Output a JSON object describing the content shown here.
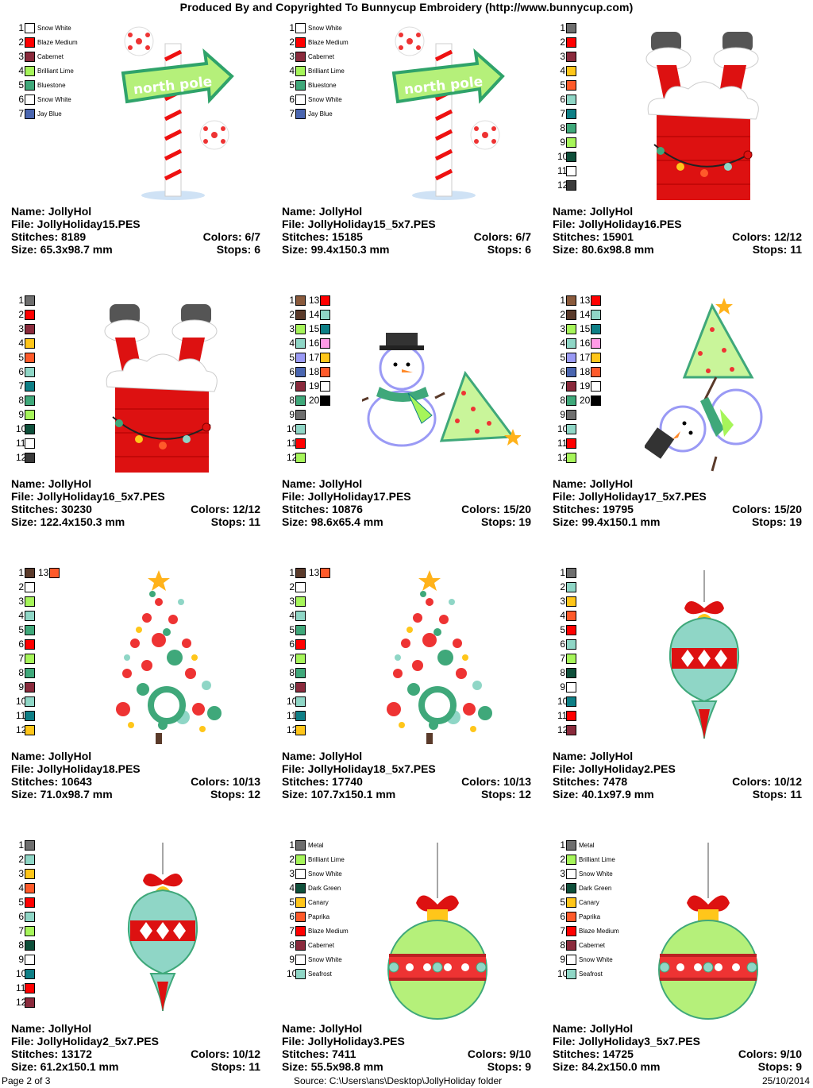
{
  "header": "Produced By and Copyrighted To Bunnycup Embroidery (http://www.bunnycup.com)",
  "footer": {
    "page": "Page 2 of 3",
    "source": "Source: C:\\Users\\ans\\Desktop\\JollyHoliday folder",
    "date": "25/10/2014"
  },
  "labels": {
    "name": "Name:",
    "file": "File:",
    "stitches": "Stitches:",
    "size": "Size:",
    "colors": "Colors:",
    "stops": "Stops:"
  },
  "designs": [
    {
      "name": "JollyHol",
      "file": "JollyHoliday15.PES",
      "stitches": "8189",
      "size": "65.3x98.7 mm",
      "colors": "6/7",
      "stops": "6",
      "art": "northpole",
      "swatches": [
        {
          "n": "1",
          "c": "#ffffff",
          "l": "Snow White"
        },
        {
          "n": "2",
          "c": "#ff0000",
          "l": "Blaze Medium"
        },
        {
          "n": "3",
          "c": "#8a2a3c",
          "l": "Cabernet"
        },
        {
          "n": "4",
          "c": "#a6f55a",
          "l": "Brilliant Lime"
        },
        {
          "n": "5",
          "c": "#3fa87a",
          "l": "Bluestone"
        },
        {
          "n": "6",
          "c": "#ffffff",
          "l": "Snow White"
        },
        {
          "n": "7",
          "c": "#4a66b0",
          "l": "Jay Blue"
        }
      ]
    },
    {
      "name": "JollyHol",
      "file": "JollyHoliday15_5x7.PES",
      "stitches": "15185",
      "size": "99.4x150.3 mm",
      "colors": "6/7",
      "stops": "6",
      "art": "northpole",
      "swatches": [
        {
          "n": "1",
          "c": "#ffffff",
          "l": "Snow White"
        },
        {
          "n": "2",
          "c": "#ff0000",
          "l": "Blaze Medium"
        },
        {
          "n": "3",
          "c": "#8a2a3c",
          "l": "Cabernet"
        },
        {
          "n": "4",
          "c": "#a6f55a",
          "l": "Brilliant Lime"
        },
        {
          "n": "5",
          "c": "#3fa87a",
          "l": "Bluestone"
        },
        {
          "n": "6",
          "c": "#ffffff",
          "l": "Snow White"
        },
        {
          "n": "7",
          "c": "#4a66b0",
          "l": "Jay Blue"
        }
      ]
    },
    {
      "name": "JollyHol",
      "file": "JollyHoliday16.PES",
      "stitches": "15901",
      "size": "80.6x98.8 mm",
      "colors": "12/12",
      "stops": "11",
      "art": "chimney",
      "swatches": [
        {
          "n": "1",
          "c": "#6e6e6e"
        },
        {
          "n": "2",
          "c": "#ff0000"
        },
        {
          "n": "3",
          "c": "#8a2a3c"
        },
        {
          "n": "4",
          "c": "#ffc61a"
        },
        {
          "n": "5",
          "c": "#ff5a2a"
        },
        {
          "n": "6",
          "c": "#8fd6c6"
        },
        {
          "n": "7",
          "c": "#0e7f86"
        },
        {
          "n": "8",
          "c": "#3fa87a"
        },
        {
          "n": "9",
          "c": "#a6f55a"
        },
        {
          "n": "10",
          "c": "#0e4f3a"
        },
        {
          "n": "11",
          "c": "#ffffff"
        },
        {
          "n": "12",
          "c": "#3a3a3a"
        }
      ]
    },
    {
      "name": "JollyHol",
      "file": "JollyHoliday16_5x7.PES",
      "stitches": "30230",
      "size": "122.4x150.3 mm",
      "colors": "12/12",
      "stops": "11",
      "art": "chimney",
      "swatches": [
        {
          "n": "1",
          "c": "#6e6e6e"
        },
        {
          "n": "2",
          "c": "#ff0000"
        },
        {
          "n": "3",
          "c": "#8a2a3c"
        },
        {
          "n": "4",
          "c": "#ffc61a"
        },
        {
          "n": "5",
          "c": "#ff5a2a"
        },
        {
          "n": "6",
          "c": "#8fd6c6"
        },
        {
          "n": "7",
          "c": "#0e7f86"
        },
        {
          "n": "8",
          "c": "#3fa87a"
        },
        {
          "n": "9",
          "c": "#a6f55a"
        },
        {
          "n": "10",
          "c": "#0e4f3a"
        },
        {
          "n": "11",
          "c": "#ffffff"
        },
        {
          "n": "12",
          "c": "#3a3a3a"
        }
      ]
    },
    {
      "name": "JollyHol",
      "file": "JollyHoliday17.PES",
      "stitches": "10876",
      "size": "98.6x65.4 mm",
      "colors": "15/20",
      "stops": "19",
      "art": "snowman-lying",
      "swatches": [
        {
          "n": "1",
          "c": "#8a5a3c",
          "n2": "13",
          "c2": "#ff0000"
        },
        {
          "n": "2",
          "c": "#5a3a2a",
          "n2": "14",
          "c2": "#8fd6c6"
        },
        {
          "n": "3",
          "c": "#a6f55a",
          "n2": "15",
          "c2": "#0e7f86"
        },
        {
          "n": "4",
          "c": "#8fd6c6",
          "n2": "16",
          "c2": "#ff9ae6"
        },
        {
          "n": "5",
          "c": "#9a9af5",
          "n2": "17",
          "c2": "#ffc61a"
        },
        {
          "n": "6",
          "c": "#4a66b0",
          "n2": "18",
          "c2": "#ff5a2a"
        },
        {
          "n": "7",
          "c": "#8a2a3c",
          "n2": "19",
          "c2": "#ffffff"
        },
        {
          "n": "8",
          "c": "#3fa87a",
          "n2": "20",
          "c2": "#000000"
        },
        {
          "n": "9",
          "c": "#6e6e6e"
        },
        {
          "n": "10",
          "c": "#8fd6c6"
        },
        {
          "n": "11",
          "c": "#ff0000"
        },
        {
          "n": "12",
          "c": "#a6f55a"
        }
      ]
    },
    {
      "name": "JollyHol",
      "file": "JollyHoliday17_5x7.PES",
      "stitches": "19795",
      "size": "99.4x150.1 mm",
      "colors": "15/20",
      "stops": "19",
      "art": "snowman-tree",
      "swatches": [
        {
          "n": "1",
          "c": "#8a5a3c",
          "n2": "13",
          "c2": "#ff0000"
        },
        {
          "n": "2",
          "c": "#5a3a2a",
          "n2": "14",
          "c2": "#8fd6c6"
        },
        {
          "n": "3",
          "c": "#a6f55a",
          "n2": "15",
          "c2": "#0e7f86"
        },
        {
          "n": "4",
          "c": "#8fd6c6",
          "n2": "16",
          "c2": "#ff9ae6"
        },
        {
          "n": "5",
          "c": "#9a9af5",
          "n2": "17",
          "c2": "#ffc61a"
        },
        {
          "n": "6",
          "c": "#4a66b0",
          "n2": "18",
          "c2": "#ff5a2a"
        },
        {
          "n": "7",
          "c": "#8a2a3c",
          "n2": "19",
          "c2": "#ffffff"
        },
        {
          "n": "8",
          "c": "#3fa87a",
          "n2": "20",
          "c2": "#000000"
        },
        {
          "n": "9",
          "c": "#6e6e6e"
        },
        {
          "n": "10",
          "c": "#8fd6c6"
        },
        {
          "n": "11",
          "c": "#ff0000"
        },
        {
          "n": "12",
          "c": "#a6f55a"
        }
      ]
    },
    {
      "name": "JollyHol",
      "file": "JollyHoliday18.PES",
      "stitches": "10643",
      "size": "71.0x98.7 mm",
      "colors": "10/13",
      "stops": "12",
      "art": "tree",
      "swatches": [
        {
          "n": "1",
          "c": "#5a3a2a",
          "n2": "13",
          "c2": "#ff5a2a"
        },
        {
          "n": "2",
          "c": "#ffffff"
        },
        {
          "n": "3",
          "c": "#a6f55a"
        },
        {
          "n": "4",
          "c": "#8fd6c6"
        },
        {
          "n": "5",
          "c": "#3fa87a"
        },
        {
          "n": "6",
          "c": "#ff0000"
        },
        {
          "n": "7",
          "c": "#a6f55a"
        },
        {
          "n": "8",
          "c": "#3fa87a"
        },
        {
          "n": "9",
          "c": "#8a2a3c"
        },
        {
          "n": "10",
          "c": "#8fd6c6"
        },
        {
          "n": "11",
          "c": "#0e7f86"
        },
        {
          "n": "12",
          "c": "#ffc61a"
        }
      ]
    },
    {
      "name": "JollyHol",
      "file": "JollyHoliday18_5x7.PES",
      "stitches": "17740",
      "size": "107.7x150.1 mm",
      "colors": "10/13",
      "stops": "12",
      "art": "tree",
      "swatches": [
        {
          "n": "1",
          "c": "#5a3a2a",
          "n2": "13",
          "c2": "#ff5a2a"
        },
        {
          "n": "2",
          "c": "#ffffff"
        },
        {
          "n": "3",
          "c": "#a6f55a"
        },
        {
          "n": "4",
          "c": "#8fd6c6"
        },
        {
          "n": "5",
          "c": "#3fa87a"
        },
        {
          "n": "6",
          "c": "#ff0000"
        },
        {
          "n": "7",
          "c": "#a6f55a"
        },
        {
          "n": "8",
          "c": "#3fa87a"
        },
        {
          "n": "9",
          "c": "#8a2a3c"
        },
        {
          "n": "10",
          "c": "#8fd6c6"
        },
        {
          "n": "11",
          "c": "#0e7f86"
        },
        {
          "n": "12",
          "c": "#ffc61a"
        }
      ]
    },
    {
      "name": "JollyHol",
      "file": "JollyHoliday2.PES",
      "stitches": "7478",
      "size": "40.1x97.9 mm",
      "colors": "10/12",
      "stops": "11",
      "art": "ornament-drop",
      "swatches": [
        {
          "n": "1",
          "c": "#6e6e6e"
        },
        {
          "n": "2",
          "c": "#8fd6c6"
        },
        {
          "n": "3",
          "c": "#ffc61a"
        },
        {
          "n": "4",
          "c": "#ff5a2a"
        },
        {
          "n": "5",
          "c": "#ff0000"
        },
        {
          "n": "6",
          "c": "#8fd6c6"
        },
        {
          "n": "7",
          "c": "#a6f55a"
        },
        {
          "n": "8",
          "c": "#0e4f3a"
        },
        {
          "n": "9",
          "c": "#ffffff"
        },
        {
          "n": "10",
          "c": "#0e7f86"
        },
        {
          "n": "11",
          "c": "#ff0000"
        },
        {
          "n": "12",
          "c": "#8a2a3c"
        }
      ]
    },
    {
      "name": "JollyHol",
      "file": "JollyHoliday2_5x7.PES",
      "stitches": "13172",
      "size": "61.2x150.1 mm",
      "colors": "10/12",
      "stops": "11",
      "art": "ornament-drop",
      "swatches": [
        {
          "n": "1",
          "c": "#6e6e6e"
        },
        {
          "n": "2",
          "c": "#8fd6c6"
        },
        {
          "n": "3",
          "c": "#ffc61a"
        },
        {
          "n": "4",
          "c": "#ff5a2a"
        },
        {
          "n": "5",
          "c": "#ff0000"
        },
        {
          "n": "6",
          "c": "#8fd6c6"
        },
        {
          "n": "7",
          "c": "#a6f55a"
        },
        {
          "n": "8",
          "c": "#0e4f3a"
        },
        {
          "n": "9",
          "c": "#ffffff"
        },
        {
          "n": "10",
          "c": "#0e7f86"
        },
        {
          "n": "11",
          "c": "#ff0000"
        },
        {
          "n": "12",
          "c": "#8a2a3c"
        }
      ]
    },
    {
      "name": "JollyHol",
      "file": "JollyHoliday3.PES",
      "stitches": "7411",
      "size": "55.5x98.8 mm",
      "colors": "9/10",
      "stops": "9",
      "art": "ornament-ball",
      "swatches": [
        {
          "n": "1",
          "c": "#6e6e6e",
          "l": "Metal"
        },
        {
          "n": "2",
          "c": "#a6f55a",
          "l": "Brilliant Lime"
        },
        {
          "n": "3",
          "c": "#ffffff",
          "l": "Snow White"
        },
        {
          "n": "4",
          "c": "#0e4f3a",
          "l": "Dark Green"
        },
        {
          "n": "5",
          "c": "#ffc61a",
          "l": "Canary"
        },
        {
          "n": "6",
          "c": "#ff5a2a",
          "l": "Paprika"
        },
        {
          "n": "7",
          "c": "#ff0000",
          "l": "Blaze Medium"
        },
        {
          "n": "8",
          "c": "#8a2a3c",
          "l": "Cabernet"
        },
        {
          "n": "9",
          "c": "#ffffff",
          "l": "Snow White"
        },
        {
          "n": "10",
          "c": "#8fd6c6",
          "l": "Seafrost"
        }
      ]
    },
    {
      "name": "JollyHol",
      "file": "JollyHoliday3_5x7.PES",
      "stitches": "14725",
      "size": "84.2x150.0 mm",
      "colors": "9/10",
      "stops": "9",
      "art": "ornament-ball",
      "swatches": [
        {
          "n": "1",
          "c": "#6e6e6e",
          "l": "Metal"
        },
        {
          "n": "2",
          "c": "#a6f55a",
          "l": "Brilliant Lime"
        },
        {
          "n": "3",
          "c": "#ffffff",
          "l": "Snow White"
        },
        {
          "n": "4",
          "c": "#0e4f3a",
          "l": "Dark Green"
        },
        {
          "n": "5",
          "c": "#ffc61a",
          "l": "Canary"
        },
        {
          "n": "6",
          "c": "#ff5a2a",
          "l": "Paprika"
        },
        {
          "n": "7",
          "c": "#ff0000",
          "l": "Blaze Medium"
        },
        {
          "n": "8",
          "c": "#8a2a3c",
          "l": "Cabernet"
        },
        {
          "n": "9",
          "c": "#ffffff",
          "l": "Snow White"
        },
        {
          "n": "10",
          "c": "#8fd6c6",
          "l": "Seafrost"
        }
      ]
    }
  ]
}
